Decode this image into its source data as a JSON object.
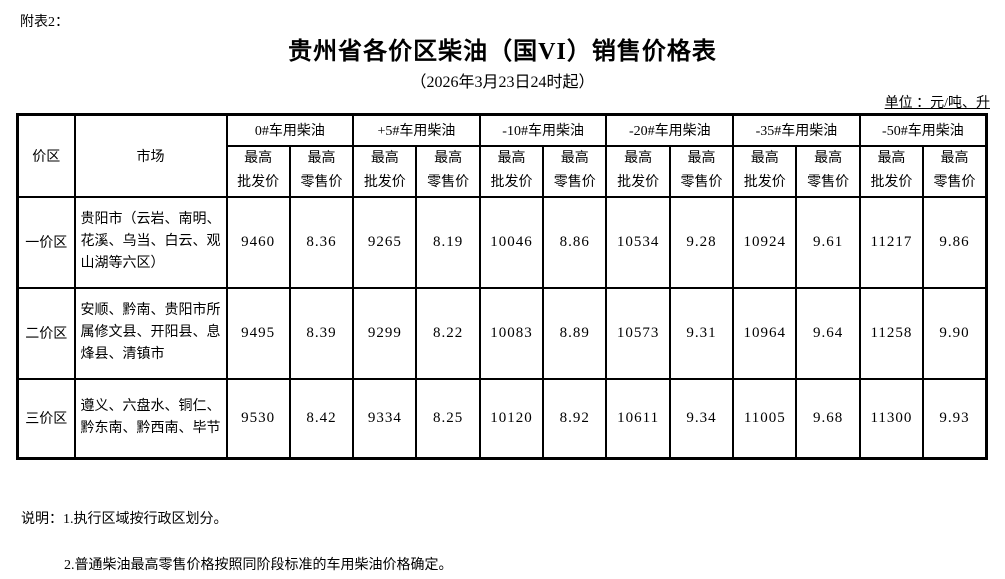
{
  "page": {
    "attachment_label": "附表2：",
    "title": "贵州省各价区柴油（国VI）销售价格表",
    "subtitle": "（2026年3月23日24时起）",
    "unit_label": "单位 ：元/吨、升"
  },
  "table": {
    "corner_headers": {
      "zone": "价区",
      "market": "市场"
    },
    "product_groups": [
      "0#车用柴油",
      "+5#车用柴油",
      "-10#车用柴油",
      "-20#车用柴油",
      "-35#车用柴油",
      "-50#车用柴油"
    ],
    "sub_headers": {
      "wholesale": {
        "line1": "最高",
        "line2": "批发价"
      },
      "retail": {
        "line1": "最高",
        "line2": "零售价"
      }
    },
    "rows": [
      {
        "zone": "一价区",
        "market": "贵阳市（云岩、南明、花溪、乌当、白云、观山湖等六区）",
        "values": [
          "9460",
          "8.36",
          "9265",
          "8.19",
          "10046",
          "8.86",
          "10534",
          "9.28",
          "10924",
          "9.61",
          "11217",
          "9.86"
        ]
      },
      {
        "zone": "二价区",
        "market": "安顺、黔南、贵阳市所属修文县、开阳县、息烽县、清镇市",
        "values": [
          "9495",
          "8.39",
          "9299",
          "8.22",
          "10083",
          "8.89",
          "10573",
          "9.31",
          "10964",
          "9.64",
          "11258",
          "9.90"
        ]
      },
      {
        "zone": "三价区",
        "market": "遵义、六盘水、铜仁、黔东南、黔西南、毕节",
        "values": [
          "9530",
          "8.42",
          "9334",
          "8.25",
          "10120",
          "8.92",
          "10611",
          "9.34",
          "11005",
          "9.68",
          "11300",
          "9.93"
        ]
      }
    ]
  },
  "notes": {
    "line1": "说明：1.执行区域按行政区划分。",
    "line2": "2.普通柴油最高零售价格按照同阶段标准的车用柴油价格确定。"
  }
}
